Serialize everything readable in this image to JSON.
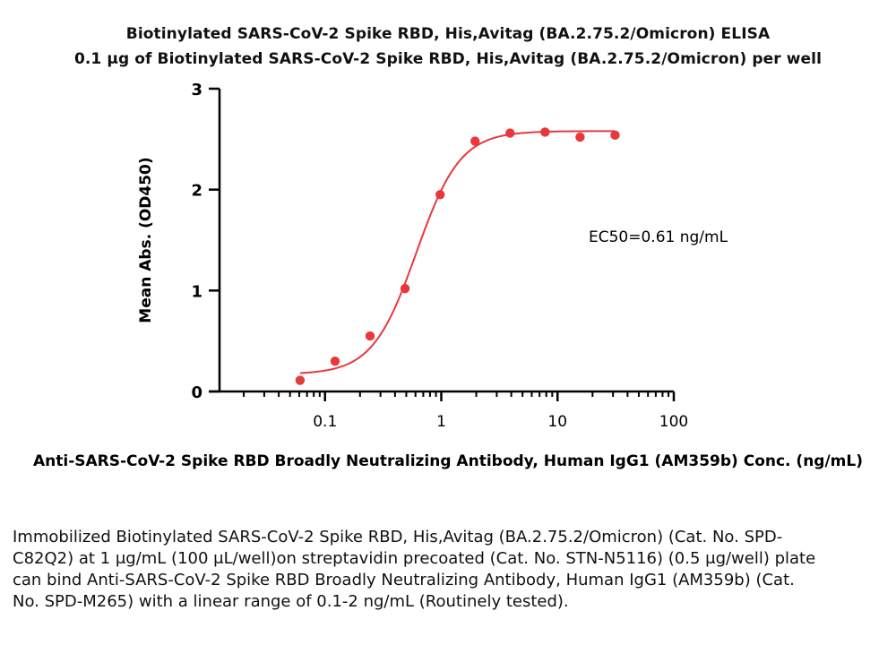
{
  "chart_data": {
    "type": "scatter",
    "title": "Biotinylated SARS-CoV-2 Spike RBD, His,Avitag (BA.2.75.2/Omicron) ELISA",
    "subtitle": "0.1 μg of Biotinylated SARS-CoV-2 Spike RBD, His,Avitag (BA.2.75.2/Omicron) per well",
    "xlabel": "Anti-SARS-CoV-2 Spike RBD Broadly Neutralizing Antibody, Human IgG1 (AM359b) Conc. (ng/mL)",
    "ylabel": "Mean Abs. (OD450)",
    "x_scale": "log",
    "xlim": [
      0.01,
      100
    ],
    "ylim": [
      0,
      3
    ],
    "x_ticks": [
      {
        "value": 0.1,
        "label": "0.1"
      },
      {
        "value": 1,
        "label": "1"
      },
      {
        "value": 10,
        "label": "10"
      },
      {
        "value": 100,
        "label": "100"
      }
    ],
    "y_ticks": [
      {
        "value": 0,
        "label": "0"
      },
      {
        "value": 1,
        "label": "1"
      },
      {
        "value": 2,
        "label": "2"
      },
      {
        "value": 3,
        "label": "3"
      }
    ],
    "grid": false,
    "point_color": "#e8383c",
    "curve_color": "#e8383c",
    "series": [
      {
        "x": [
          0.061,
          0.122,
          0.244,
          0.488,
          0.977,
          1.953,
          3.906,
          7.813,
          15.625,
          31.25
        ],
        "y": [
          0.11,
          0.3,
          0.55,
          1.02,
          1.95,
          2.48,
          2.56,
          2.57,
          2.52,
          2.54
        ]
      }
    ],
    "fit": {
      "bottom": 0.17,
      "top": 2.58,
      "ec50": 0.61,
      "hill": 2.3
    },
    "annotation": "EC50=0.61 ng/mL"
  },
  "caption": "Immobilized Biotinylated SARS-CoV-2 Spike RBD, His,Avitag (BA.2.75.2/Omicron) (Cat. No. SPD-C82Q2) at 1 μg/mL (100 μL/well)on streptavidin precoated (Cat. No. STN-N5116) (0.5 μg/well) plate can bind Anti-SARS-CoV-2 Spike RBD Broadly Neutralizing Antibody, Human IgG1 (AM359b) (Cat. No. SPD-M265) with a linear range of 0.1-2 ng/mL (Routinely tested)."
}
